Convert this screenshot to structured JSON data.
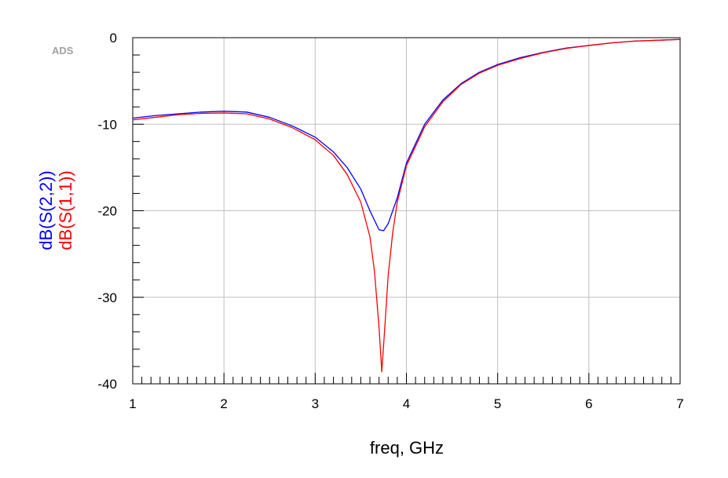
{
  "chart_data": {
    "type": "line",
    "watermark": "ADS",
    "xlabel": "freq, GHz",
    "xlim": [
      1,
      7
    ],
    "ylim": [
      -40,
      0
    ],
    "x_ticks": [
      1,
      2,
      3,
      4,
      5,
      6,
      7
    ],
    "y_ticks": [
      0,
      -10,
      -20,
      -30,
      -40
    ],
    "grid": true,
    "legend_placement": "left-vertical",
    "series": [
      {
        "name": "dB(S(2,2))",
        "color": "#0000ff",
        "points": [
          [
            1.0,
            -9.3
          ],
          [
            1.25,
            -9.0
          ],
          [
            1.5,
            -8.8
          ],
          [
            1.75,
            -8.6
          ],
          [
            2.0,
            -8.5
          ],
          [
            2.25,
            -8.6
          ],
          [
            2.5,
            -9.2
          ],
          [
            2.75,
            -10.2
          ],
          [
            3.0,
            -11.5
          ],
          [
            3.2,
            -13.2
          ],
          [
            3.35,
            -15.0
          ],
          [
            3.5,
            -17.5
          ],
          [
            3.6,
            -20.0
          ],
          [
            3.7,
            -22.2
          ],
          [
            3.75,
            -22.3
          ],
          [
            3.8,
            -21.5
          ],
          [
            3.9,
            -18.5
          ],
          [
            4.0,
            -14.5
          ],
          [
            4.2,
            -10.0
          ],
          [
            4.4,
            -7.2
          ],
          [
            4.6,
            -5.3
          ],
          [
            4.8,
            -4.0
          ],
          [
            5.0,
            -3.1
          ],
          [
            5.25,
            -2.3
          ],
          [
            5.5,
            -1.7
          ],
          [
            5.75,
            -1.2
          ],
          [
            6.0,
            -0.9
          ],
          [
            6.25,
            -0.6
          ],
          [
            6.5,
            -0.4
          ],
          [
            6.75,
            -0.3
          ],
          [
            7.0,
            -0.2
          ]
        ]
      },
      {
        "name": "dB(S(1,1))",
        "color": "#ff0000",
        "points": [
          [
            1.0,
            -9.5
          ],
          [
            1.25,
            -9.2
          ],
          [
            1.5,
            -8.9
          ],
          [
            1.75,
            -8.75
          ],
          [
            2.0,
            -8.7
          ],
          [
            2.25,
            -8.8
          ],
          [
            2.5,
            -9.4
          ],
          [
            2.75,
            -10.4
          ],
          [
            3.0,
            -11.8
          ],
          [
            3.2,
            -13.6
          ],
          [
            3.35,
            -15.8
          ],
          [
            3.5,
            -19.0
          ],
          [
            3.6,
            -23.0
          ],
          [
            3.65,
            -27.0
          ],
          [
            3.7,
            -33.5
          ],
          [
            3.73,
            -38.6
          ],
          [
            3.76,
            -34.0
          ],
          [
            3.8,
            -27.5
          ],
          [
            3.85,
            -22.5
          ],
          [
            3.9,
            -19.0
          ],
          [
            4.0,
            -14.8
          ],
          [
            4.2,
            -10.3
          ],
          [
            4.4,
            -7.4
          ],
          [
            4.6,
            -5.4
          ],
          [
            4.8,
            -4.1
          ],
          [
            5.0,
            -3.2
          ],
          [
            5.25,
            -2.4
          ],
          [
            5.5,
            -1.75
          ],
          [
            5.75,
            -1.25
          ],
          [
            6.0,
            -0.9
          ],
          [
            6.25,
            -0.6
          ],
          [
            6.5,
            -0.4
          ],
          [
            6.75,
            -0.3
          ],
          [
            7.0,
            -0.2
          ]
        ]
      }
    ]
  }
}
